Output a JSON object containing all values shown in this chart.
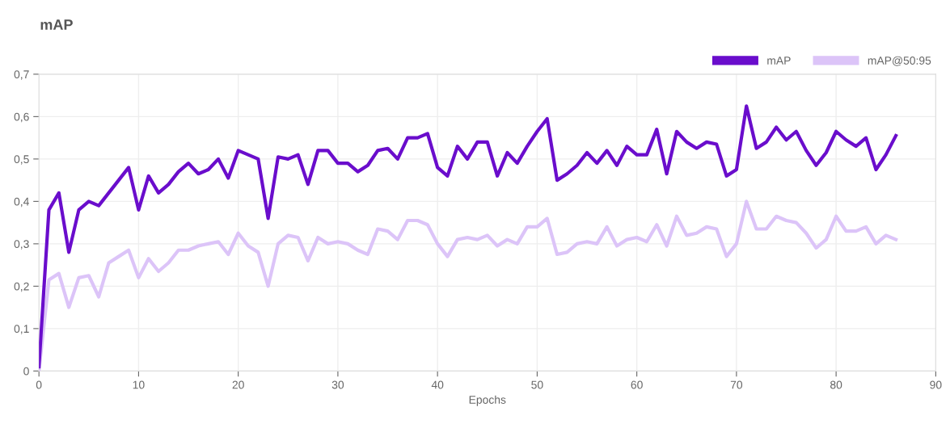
{
  "chart_data": {
    "type": "line",
    "title": "mAP",
    "xlabel": "Epochs",
    "x": [
      0,
      1,
      2,
      3,
      4,
      5,
      6,
      7,
      8,
      9,
      10,
      11,
      12,
      13,
      14,
      15,
      16,
      17,
      18,
      19,
      20,
      21,
      22,
      23,
      24,
      25,
      26,
      27,
      28,
      29,
      30,
      31,
      32,
      33,
      34,
      35,
      36,
      37,
      38,
      39,
      40,
      41,
      42,
      43,
      44,
      45,
      46,
      47,
      48,
      49,
      50,
      51,
      52,
      53,
      54,
      55,
      56,
      57,
      58,
      59,
      60,
      61,
      62,
      63,
      64,
      65,
      66,
      67,
      68,
      69,
      70,
      71,
      72,
      73,
      74,
      75,
      76,
      77,
      78,
      79,
      80,
      81,
      82,
      83,
      84,
      85,
      86
    ],
    "series": [
      {
        "name": "mAP",
        "color": "#6a0dcc",
        "values": [
          0.01,
          0.38,
          0.42,
          0.28,
          0.38,
          0.4,
          0.39,
          0.42,
          0.45,
          0.48,
          0.38,
          0.46,
          0.42,
          0.44,
          0.47,
          0.49,
          0.465,
          0.475,
          0.5,
          0.455,
          0.52,
          0.51,
          0.5,
          0.36,
          0.505,
          0.5,
          0.51,
          0.44,
          0.52,
          0.52,
          0.49,
          0.49,
          0.47,
          0.485,
          0.52,
          0.525,
          0.5,
          0.55,
          0.55,
          0.56,
          0.48,
          0.46,
          0.53,
          0.5,
          0.54,
          0.54,
          0.46,
          0.515,
          0.49,
          0.53,
          0.565,
          0.595,
          0.45,
          0.465,
          0.485,
          0.515,
          0.49,
          0.52,
          0.485,
          0.53,
          0.51,
          0.51,
          0.57,
          0.465,
          0.565,
          0.54,
          0.525,
          0.54,
          0.535,
          0.46,
          0.475,
          0.625,
          0.525,
          0.54,
          0.575,
          0.545,
          0.565,
          0.52,
          0.485,
          0.515,
          0.565,
          0.545,
          0.53,
          0.55,
          0.475,
          0.51,
          0.555
        ]
      },
      {
        "name": "mAP@50:95",
        "color": "#dcc4f8",
        "values": [
          0.0,
          0.215,
          0.23,
          0.15,
          0.22,
          0.225,
          0.175,
          0.255,
          0.27,
          0.285,
          0.22,
          0.265,
          0.235,
          0.255,
          0.285,
          0.285,
          0.295,
          0.3,
          0.305,
          0.275,
          0.325,
          0.295,
          0.28,
          0.2,
          0.3,
          0.32,
          0.315,
          0.26,
          0.315,
          0.3,
          0.305,
          0.3,
          0.285,
          0.275,
          0.335,
          0.33,
          0.31,
          0.355,
          0.355,
          0.345,
          0.3,
          0.27,
          0.31,
          0.315,
          0.31,
          0.32,
          0.295,
          0.31,
          0.3,
          0.34,
          0.34,
          0.36,
          0.275,
          0.28,
          0.3,
          0.305,
          0.3,
          0.34,
          0.295,
          0.31,
          0.315,
          0.305,
          0.345,
          0.295,
          0.365,
          0.32,
          0.325,
          0.34,
          0.335,
          0.27,
          0.3,
          0.4,
          0.335,
          0.335,
          0.365,
          0.355,
          0.35,
          0.325,
          0.29,
          0.31,
          0.365,
          0.33,
          0.33,
          0.34,
          0.3,
          0.32,
          0.31
        ]
      }
    ],
    "xlim": [
      0,
      90
    ],
    "xticks": [
      0,
      10,
      20,
      30,
      40,
      50,
      60,
      70,
      80,
      90
    ],
    "ylim": [
      0,
      0.7
    ],
    "yticks": [
      0,
      {
        "value": 0.1,
        "label": "0,1"
      },
      {
        "value": 0.2,
        "label": "0,2"
      },
      {
        "value": 0.3,
        "label": "0,3"
      },
      {
        "value": 0.4,
        "label": "0,4"
      },
      {
        "value": 0.5,
        "label": "0,5"
      },
      {
        "value": 0.6,
        "label": "0,6"
      },
      {
        "value": 0.7,
        "label": "0,7"
      }
    ],
    "grid": true,
    "legend": "top right",
    "marker": "none",
    "line_style": "solid"
  }
}
